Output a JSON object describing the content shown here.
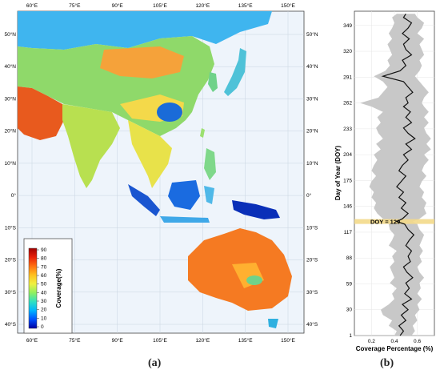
{
  "map": {
    "lon_labels": [
      "60°E",
      "75°E",
      "90°E",
      "105°E",
      "120°E",
      "135°E",
      "150°E"
    ],
    "lat_labels_left": [
      "50°N",
      "40°N",
      "30°N",
      "20°N",
      "10°N",
      "0°",
      "10°S",
      "20°S",
      "30°S",
      "40°S"
    ],
    "lat_labels_right": [
      "50°N",
      "40°N",
      "30°N",
      "20°N",
      "10°N",
      "0°",
      "10°S",
      "20°S",
      "30°S",
      "40°S"
    ],
    "legend": {
      "title": "Coverage(%)",
      "ticks": [
        "90",
        "80",
        "70",
        "60",
        "50",
        "40",
        "30",
        "20",
        "10",
        "0"
      ],
      "colors": [
        "#0000a0",
        "#0050ff",
        "#00b4ff",
        "#30e0c0",
        "#90f060",
        "#f0f040",
        "#ffc020",
        "#ff7010",
        "#e82008",
        "#a00000"
      ]
    }
  },
  "panel_labels": {
    "a": "(a)",
    "b": "(b)"
  },
  "chart_data": {
    "type": "line",
    "xlabel": "Coverage Percentage (%)",
    "ylabel": "Day of Year (DOY)",
    "xlim": [
      0.05,
      0.75
    ],
    "ylim": [
      1,
      365
    ],
    "xticks": [
      "0.2",
      "0.4",
      "0.6"
    ],
    "yticks": [
      "1",
      "30",
      "59",
      "88",
      "117",
      "146",
      "175",
      "204",
      "233",
      "262",
      "291",
      "320",
      "349"
    ],
    "annotation": {
      "text": "DOY = 129",
      "doy": 129
    },
    "series": [
      {
        "doy": [
          1,
          6,
          12,
          18,
          24,
          30,
          36,
          42,
          48,
          54,
          60,
          66,
          72,
          78,
          84,
          90,
          96,
          102,
          108,
          114,
          120,
          126,
          129,
          132,
          138,
          144,
          150,
          156,
          162,
          168,
          174,
          180,
          186,
          192,
          198,
          204,
          210,
          216,
          222,
          228,
          234,
          240,
          246,
          252,
          258,
          262,
          268,
          274,
          280,
          286,
          292,
          298,
          304,
          310,
          316,
          322,
          328,
          334,
          340,
          346,
          352,
          358,
          362
        ],
        "mean": [
          0.45,
          0.48,
          0.44,
          0.5,
          0.46,
          0.52,
          0.47,
          0.55,
          0.49,
          0.53,
          0.5,
          0.56,
          0.51,
          0.48,
          0.54,
          0.52,
          0.55,
          0.5,
          0.53,
          0.57,
          0.52,
          0.49,
          0.42,
          0.47,
          0.52,
          0.46,
          0.5,
          0.44,
          0.48,
          0.42,
          0.46,
          0.5,
          0.44,
          0.47,
          0.52,
          0.48,
          0.55,
          0.5,
          0.58,
          0.52,
          0.48,
          0.55,
          0.5,
          0.54,
          0.48,
          0.52,
          0.5,
          0.56,
          0.52,
          0.48,
          0.3,
          0.45,
          0.5,
          0.47,
          0.55,
          0.5,
          0.48,
          0.53,
          0.47,
          0.52,
          0.55,
          0.48,
          0.5
        ],
        "low": [
          0.4,
          0.42,
          0.35,
          0.38,
          0.3,
          0.28,
          0.35,
          0.4,
          0.38,
          0.42,
          0.36,
          0.4,
          0.38,
          0.36,
          0.4,
          0.38,
          0.42,
          0.35,
          0.38,
          0.4,
          0.36,
          0.35,
          0.34,
          0.3,
          0.25,
          0.22,
          0.24,
          0.2,
          0.22,
          0.18,
          0.2,
          0.24,
          0.2,
          0.22,
          0.25,
          0.22,
          0.28,
          0.24,
          0.3,
          0.26,
          0.24,
          0.28,
          0.25,
          0.3,
          0.2,
          0.1,
          0.26,
          0.3,
          0.34,
          0.3,
          0.22,
          0.32,
          0.36,
          0.34,
          0.38,
          0.36,
          0.34,
          0.38,
          0.35,
          0.38,
          0.4,
          0.38,
          0.42
        ],
        "high": [
          0.55,
          0.58,
          0.56,
          0.6,
          0.58,
          0.62,
          0.6,
          0.64,
          0.6,
          0.63,
          0.62,
          0.66,
          0.62,
          0.6,
          0.64,
          0.62,
          0.65,
          0.62,
          0.64,
          0.66,
          0.62,
          0.6,
          0.56,
          0.62,
          0.68,
          0.66,
          0.68,
          0.64,
          0.66,
          0.62,
          0.64,
          0.68,
          0.64,
          0.66,
          0.7,
          0.66,
          0.72,
          0.68,
          0.72,
          0.68,
          0.66,
          0.7,
          0.66,
          0.7,
          0.66,
          0.64,
          0.66,
          0.7,
          0.66,
          0.62,
          0.58,
          0.62,
          0.64,
          0.62,
          0.66,
          0.64,
          0.62,
          0.66,
          0.6,
          0.64,
          0.66,
          0.6,
          0.58
        ]
      }
    ]
  }
}
